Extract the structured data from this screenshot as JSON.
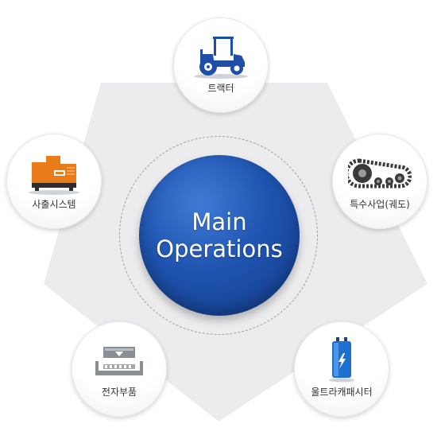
{
  "center": {
    "line1": "Main",
    "line2": "Operations"
  },
  "nodes": {
    "tractor": {
      "label": "트랙터",
      "icon": "tractor-icon"
    },
    "generator": {
      "label": "사출시스템",
      "icon": "injection-system-icon"
    },
    "track": {
      "label": "특수사업(궤도)",
      "icon": "rubber-track-icon"
    },
    "electronic": {
      "label": "전자부품",
      "icon": "electronic-component-icon"
    },
    "capacitor": {
      "label": "울트라캐패시터",
      "icon": "ultracapacitor-icon"
    }
  },
  "colors": {
    "center_blue": "#1f54b0",
    "pentagon_gray": "#ececee",
    "tractor_blue": "#1e4fa8",
    "generator_orange": "#ea7b19",
    "track_dark": "#3a3a3a",
    "component_gray": "#8a8f95",
    "capacitor_blue": "#1d6fd0"
  }
}
